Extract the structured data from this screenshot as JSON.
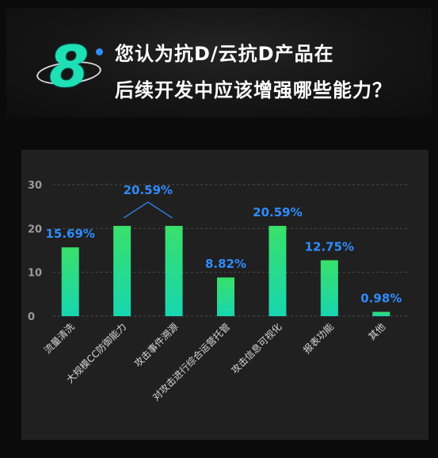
{
  "header": {
    "number": "8",
    "title_line1": "您认为抗D/云抗D产品在",
    "title_line2": "后续开发中应该增强哪些能力？"
  },
  "colors": {
    "bar_top": "#39e06a",
    "bar_bottom": "#17d6b0",
    "label": "#2f8cff",
    "badge": "#1ee0b5"
  },
  "chart_data": {
    "type": "bar",
    "categories": [
      "流量清洗",
      "大规模CC防御能力",
      "攻击事件溯源",
      "对攻击进行综合运营托管",
      "攻击信息可视化",
      "报表功能",
      "其他"
    ],
    "values": [
      15.69,
      20.59,
      20.59,
      8.82,
      20.59,
      12.75,
      0.98
    ],
    "value_labels": [
      "15.69%",
      "20.59%",
      "",
      "8.82%",
      "20.59%",
      "12.75%",
      "0.98%"
    ],
    "shared_label": {
      "text": "20.59%",
      "categories": [
        "大规模CC防御能力",
        "攻击事件溯源"
      ]
    },
    "y_ticks": [
      0,
      10,
      20,
      30
    ],
    "ylim": [
      0,
      30
    ],
    "grid": true,
    "title": "",
    "xlabel": "",
    "ylabel": ""
  }
}
